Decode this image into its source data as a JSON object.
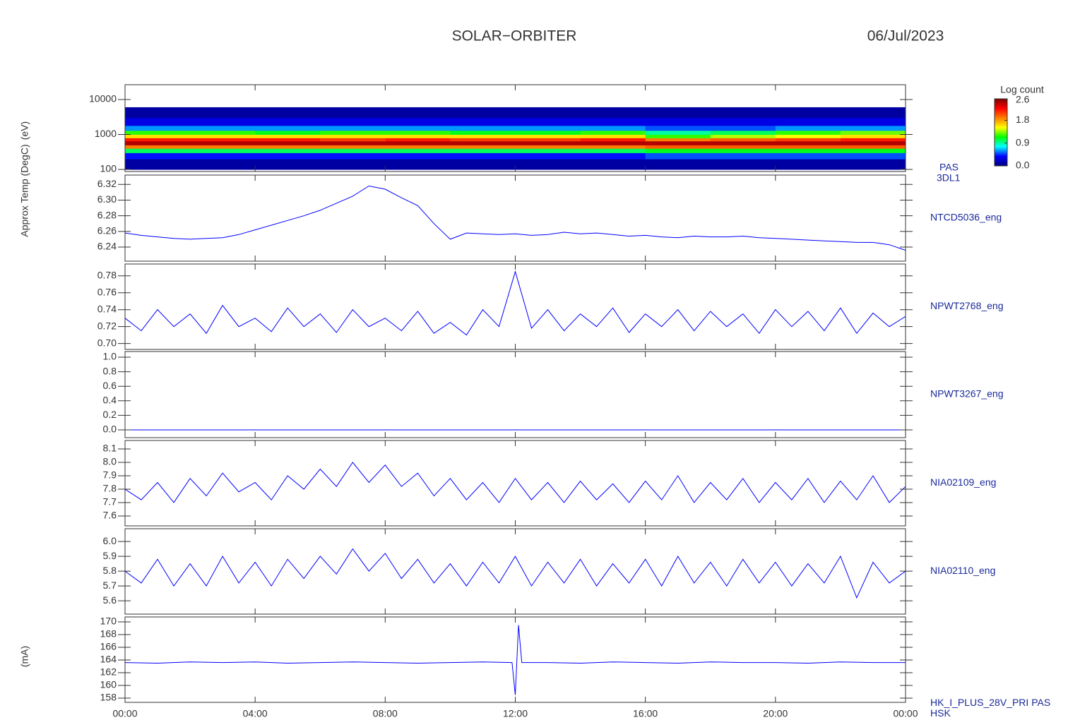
{
  "header": {
    "title": "SOLAR−ORBITER",
    "date": "06/Jul/2023"
  },
  "chart_data": [
    {
      "type": "heatmap",
      "labels": [
        "PAS",
        "3DL1"
      ],
      "ylabel": "(eV)",
      "ylog": true,
      "ylim": [
        87,
        26500
      ],
      "yticks": [
        100,
        1000,
        10000
      ],
      "x_bins": [
        0,
        2,
        4,
        6,
        8,
        10,
        12,
        14,
        16,
        18,
        20,
        22,
        24
      ],
      "y_bins": [
        100,
        200,
        300,
        400,
        500,
        650,
        800,
        1000,
        1300,
        1800,
        3000,
        6000
      ],
      "z": [
        [
          0.1,
          0.1,
          0.1,
          0.1,
          0.1,
          0.1,
          0.1,
          0.1,
          0.1,
          0.1,
          0.1,
          0.1
        ],
        [
          0.4,
          0.4,
          0.4,
          0.4,
          0.4,
          0.4,
          0.4,
          0.4,
          0.5,
          0.5,
          0.5,
          0.5
        ],
        [
          1.0,
          1.0,
          1.0,
          1.0,
          1.0,
          1.0,
          1.0,
          1.0,
          1.1,
          1.1,
          1.1,
          1.1
        ],
        [
          1.9,
          1.9,
          1.9,
          1.9,
          1.9,
          1.9,
          1.9,
          1.9,
          2.0,
          2.0,
          2.0,
          2.0
        ],
        [
          2.5,
          2.5,
          2.5,
          2.5,
          2.5,
          2.5,
          2.5,
          2.5,
          2.5,
          2.5,
          2.5,
          2.5
        ],
        [
          2.2,
          2.2,
          2.2,
          2.1,
          2.2,
          2.1,
          2.1,
          2.2,
          1.9,
          2.0,
          2.1,
          2.2
        ],
        [
          1.6,
          1.6,
          1.6,
          1.6,
          1.6,
          1.6,
          1.6,
          1.6,
          1.2,
          1.4,
          1.5,
          1.6
        ],
        [
          1.2,
          1.2,
          1.1,
          1.2,
          1.2,
          1.1,
          1.1,
          1.2,
          0.9,
          1.0,
          1.2,
          1.3
        ],
        [
          0.6,
          0.6,
          0.6,
          0.6,
          0.6,
          0.6,
          0.6,
          0.6,
          0.5,
          0.5,
          0.6,
          0.6
        ],
        [
          0.3,
          0.3,
          0.3,
          0.3,
          0.3,
          0.3,
          0.3,
          0.3,
          0.3,
          0.3,
          0.3,
          0.3
        ],
        [
          0.1,
          0.1,
          0.1,
          0.1,
          0.1,
          0.1,
          0.1,
          0.1,
          0.1,
          0.1,
          0.1,
          0.1
        ]
      ],
      "colorbar": {
        "label": "Log count",
        "clim": [
          0,
          2.65
        ],
        "ticks": [
          {
            "value": 0,
            "label": "0.0"
          },
          0.9,
          1.8,
          2.6
        ],
        "colors": [
          "#000080",
          "#0000ff",
          "#00ffff",
          "#00ff00",
          "#ffff00",
          "#ff7f00",
          "#ff0000",
          "#800000"
        ]
      }
    },
    {
      "type": "line",
      "labels": [
        "NTCD5036_eng"
      ],
      "ylabel": "Approx Temp (DegC)",
      "color": "#0000ff",
      "ylim": [
        6.222,
        6.332
      ],
      "yticks": [
        6.24,
        6.26,
        6.28,
        {
          "value": 6.3,
          "label": "6.30"
        },
        6.32
      ],
      "x": [
        0,
        0.5,
        1,
        1.5,
        2,
        2.5,
        3,
        3.5,
        4,
        4.5,
        5,
        5.5,
        6,
        6.5,
        7,
        7.5,
        8,
        8.5,
        9,
        9.5,
        10,
        10.5,
        11,
        11.5,
        12,
        12.5,
        13,
        13.5,
        14,
        14.5,
        15,
        15.5,
        16,
        16.5,
        17,
        17.5,
        18,
        18.5,
        19,
        19.5,
        20,
        20.5,
        21,
        21.5,
        22,
        22.5,
        23,
        23.5,
        24
      ],
      "values": [
        6.258,
        6.255,
        6.253,
        6.251,
        6.25,
        6.251,
        6.252,
        6.256,
        6.262,
        6.268,
        6.274,
        6.28,
        6.287,
        6.296,
        6.305,
        6.318,
        6.314,
        6.303,
        6.293,
        6.27,
        6.25,
        6.258,
        6.257,
        6.256,
        6.257,
        6.255,
        6.256,
        6.259,
        6.257,
        6.258,
        6.256,
        6.254,
        6.255,
        6.253,
        6.252,
        6.254,
        6.253,
        6.253,
        6.254,
        6.252,
        6.251,
        6.25,
        6.249,
        6.248,
        6.247,
        6.246,
        6.246,
        6.243,
        6.236
      ]
    },
    {
      "type": "line",
      "labels": [
        "NPWT2768_eng"
      ],
      "color": "#0000ff",
      "ylim": [
        0.693,
        0.794
      ],
      "yticks": [
        {
          "value": 0.7,
          "label": "0.70"
        },
        0.72,
        0.74,
        0.76,
        0.78
      ],
      "x": [
        0,
        0.5,
        1,
        1.5,
        2,
        2.5,
        3,
        3.5,
        4,
        4.5,
        5,
        5.5,
        6,
        6.5,
        7,
        7.5,
        8,
        8.5,
        9,
        9.5,
        10,
        10.5,
        11,
        11.5,
        12,
        12.5,
        13,
        13.5,
        14,
        14.5,
        15,
        15.5,
        16,
        16.5,
        17,
        17.5,
        18,
        18.5,
        19,
        19.5,
        20,
        20.5,
        21,
        21.5,
        22,
        22.5,
        23,
        23.5,
        24
      ],
      "values": [
        0.73,
        0.715,
        0.74,
        0.72,
        0.735,
        0.712,
        0.745,
        0.72,
        0.73,
        0.714,
        0.742,
        0.72,
        0.735,
        0.713,
        0.74,
        0.72,
        0.73,
        0.715,
        0.738,
        0.712,
        0.725,
        0.71,
        0.74,
        0.72,
        0.785,
        0.718,
        0.74,
        0.715,
        0.735,
        0.72,
        0.742,
        0.713,
        0.735,
        0.72,
        0.74,
        0.715,
        0.738,
        0.72,
        0.735,
        0.712,
        0.74,
        0.72,
        0.738,
        0.715,
        0.742,
        0.712,
        0.736,
        0.72,
        0.732
      ]
    },
    {
      "type": "line",
      "labels": [
        "NPWT3267_eng"
      ],
      "color": "#0000ff",
      "ylim": [
        -0.107,
        1.078
      ],
      "yticks": [
        {
          "value": 0,
          "label": "0.0"
        },
        0.2,
        0.4,
        0.6,
        0.8,
        {
          "value": 1,
          "label": "1.0"
        }
      ],
      "x": [
        0,
        0.5,
        1,
        1.5,
        2,
        2.5,
        3,
        3.5,
        4,
        4.5,
        5,
        5.5,
        6,
        6.5,
        7,
        7.5,
        8,
        8.5,
        9,
        9.5,
        10,
        10.5,
        11,
        11.5,
        12,
        12.5,
        13,
        13.5,
        14,
        14.5,
        15,
        15.5,
        16,
        16.5,
        17,
        17.5,
        18,
        18.5,
        19,
        19.5,
        20,
        20.5,
        21,
        21.5,
        22,
        22.5,
        23,
        23.5,
        24
      ],
      "values": [
        0,
        0,
        0,
        0,
        0,
        0,
        0,
        0,
        0,
        0,
        0,
        0,
        0,
        0,
        0,
        0,
        0,
        0,
        0,
        0,
        0,
        0,
        0,
        0,
        0,
        0,
        0,
        0,
        0,
        0,
        0,
        0,
        0,
        0,
        0,
        0,
        0,
        0,
        0,
        0,
        0,
        0,
        0,
        0,
        0,
        0,
        0,
        0,
        0
      ]
    },
    {
      "type": "line",
      "labels": [
        "NIA02109_eng"
      ],
      "color": "#0000ff",
      "ylim": [
        7.526,
        8.163
      ],
      "yticks": [
        7.6,
        7.7,
        7.8,
        7.9,
        {
          "value": 8,
          "label": "8.0"
        },
        8.1
      ],
      "x": [
        0,
        0.5,
        1,
        1.5,
        2,
        2.5,
        3,
        3.5,
        4,
        4.5,
        5,
        5.5,
        6,
        6.5,
        7,
        7.5,
        8,
        8.5,
        9,
        9.5,
        10,
        10.5,
        11,
        11.5,
        12,
        12.5,
        13,
        13.5,
        14,
        14.5,
        15,
        15.5,
        16,
        16.5,
        17,
        17.5,
        18,
        18.5,
        19,
        19.5,
        20,
        20.5,
        21,
        21.5,
        22,
        22.5,
        23,
        23.5,
        24
      ],
      "values": [
        7.8,
        7.72,
        7.85,
        7.7,
        7.88,
        7.75,
        7.92,
        7.78,
        7.85,
        7.72,
        7.9,
        7.8,
        7.95,
        7.82,
        8.0,
        7.85,
        7.98,
        7.82,
        7.92,
        7.75,
        7.88,
        7.72,
        7.85,
        7.7,
        7.88,
        7.72,
        7.85,
        7.7,
        7.86,
        7.72,
        7.84,
        7.7,
        7.86,
        7.72,
        7.9,
        7.7,
        7.85,
        7.72,
        7.88,
        7.7,
        7.85,
        7.72,
        7.88,
        7.7,
        7.86,
        7.72,
        7.9,
        7.7,
        7.82
      ]
    },
    {
      "type": "line",
      "labels": [
        "NIA02110_eng"
      ],
      "color": "#0000ff",
      "ylim": [
        5.51,
        6.086
      ],
      "yticks": [
        5.6,
        5.7,
        5.8,
        5.9,
        {
          "value": 6,
          "label": "6.0"
        }
      ],
      "x": [
        0,
        0.5,
        1,
        1.5,
        2,
        2.5,
        3,
        3.5,
        4,
        4.5,
        5,
        5.5,
        6,
        6.5,
        7,
        7.5,
        8,
        8.5,
        9,
        9.5,
        10,
        10.5,
        11,
        11.5,
        12,
        12.5,
        13,
        13.5,
        14,
        14.5,
        15,
        15.5,
        16,
        16.5,
        17,
        17.5,
        18,
        18.5,
        19,
        19.5,
        20,
        20.5,
        21,
        21.5,
        22,
        22.5,
        23,
        23.5,
        24
      ],
      "values": [
        5.8,
        5.72,
        5.88,
        5.7,
        5.85,
        5.7,
        5.9,
        5.72,
        5.86,
        5.7,
        5.88,
        5.75,
        5.9,
        5.78,
        5.95,
        5.8,
        5.92,
        5.75,
        5.88,
        5.72,
        5.85,
        5.7,
        5.86,
        5.72,
        5.9,
        5.7,
        5.86,
        5.72,
        5.88,
        5.7,
        5.85,
        5.72,
        5.88,
        5.7,
        5.9,
        5.72,
        5.86,
        5.7,
        5.88,
        5.72,
        5.86,
        5.7,
        5.85,
        5.72,
        5.9,
        5.62,
        5.86,
        5.72,
        5.8
      ]
    },
    {
      "type": "line",
      "labels": [
        "HK_I_PLUS_28V_PRI PAS",
        "HSK"
      ],
      "ylabel": "(mA)",
      "color": "#0000ff",
      "ylim": [
        157.33,
        170.78
      ],
      "yticks": [
        158,
        160,
        162,
        164,
        166,
        168,
        170
      ],
      "x": [
        0,
        1,
        2,
        3,
        4,
        5,
        6,
        7,
        8,
        9,
        10,
        11,
        11.9,
        12,
        12.1,
        12.2,
        13,
        14,
        15,
        16,
        17,
        18,
        19,
        20,
        21,
        22,
        23,
        24
      ],
      "values": [
        163.6,
        163.5,
        163.7,
        163.6,
        163.7,
        163.5,
        163.6,
        163.7,
        163.6,
        163.5,
        163.6,
        163.7,
        163.6,
        158.5,
        169.5,
        163.6,
        163.6,
        163.5,
        163.7,
        163.6,
        163.5,
        163.7,
        163.6,
        163.6,
        163.5,
        163.7,
        163.6,
        163.6
      ],
      "xlim": [
        0,
        24
      ],
      "xticks": [
        {
          "value": 0,
          "label": "00:00"
        },
        {
          "value": 4,
          "label": "04:00"
        },
        {
          "value": 8,
          "label": "08:00"
        },
        {
          "value": 12,
          "label": "12:00"
        },
        {
          "value": 16,
          "label": "16:00"
        },
        {
          "value": 20,
          "label": "20:00"
        },
        {
          "value": 24,
          "label": "00:00"
        }
      ]
    }
  ]
}
